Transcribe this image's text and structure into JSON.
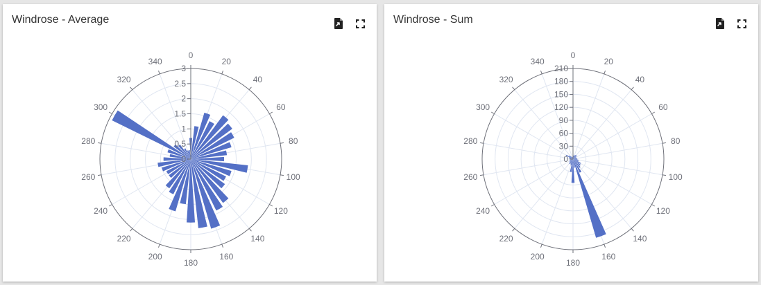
{
  "icons": {
    "export": "file-export-icon",
    "fullscreen": "fullscreen-icon"
  },
  "colors": {
    "bar": "#5470c6",
    "axis": "#6e7079",
    "grid": "#e0e6f1",
    "title": "#333333"
  },
  "chart_data": [
    {
      "type": "polar-bar",
      "title": "Windrose - Average",
      "angle_ticks": [
        0,
        20,
        40,
        60,
        80,
        100,
        120,
        140,
        160,
        180,
        200,
        220,
        240,
        260,
        280,
        300,
        320,
        340
      ],
      "radius_ticks": [
        "0",
        "0.5",
        "1",
        "1.5",
        "2",
        "2.5",
        "3"
      ],
      "radius_max": 3,
      "angle_labels_visible": true,
      "directions": [
        0,
        10,
        20,
        30,
        40,
        50,
        60,
        70,
        80,
        90,
        100,
        110,
        120,
        130,
        140,
        150,
        160,
        170,
        180,
        190,
        200,
        210,
        220,
        230,
        240,
        250,
        260,
        270,
        280,
        290,
        300,
        310,
        320,
        330,
        340,
        350
      ],
      "values": [
        0.7,
        1.1,
        1.6,
        1.4,
        1.8,
        1.7,
        1.6,
        1.4,
        1.2,
        1.1,
        1.9,
        1.4,
        1.3,
        1.4,
        1.8,
        1.9,
        2.4,
        2.3,
        2.1,
        1.5,
        1.8,
        1.3,
        1.2,
        0.9,
        0.9,
        1.0,
        1.1,
        0.9,
        0.7,
        0.8,
        2.9,
        0.7,
        0.6,
        0.4,
        0.3,
        0.3
      ]
    },
    {
      "type": "polar-bar",
      "title": "Windrose - Sum",
      "angle_ticks": [
        0,
        20,
        40,
        60,
        80,
        100,
        120,
        140,
        160,
        180,
        200,
        220,
        240,
        260,
        280,
        300,
        320,
        340
      ],
      "radius_ticks": [
        "0",
        "30",
        "60",
        "90",
        "120",
        "150",
        "180",
        "210"
      ],
      "radius_max": 210,
      "angle_labels_visible": true,
      "directions": [
        0,
        10,
        20,
        30,
        40,
        50,
        60,
        70,
        80,
        90,
        100,
        110,
        120,
        130,
        140,
        150,
        160,
        170,
        180,
        190,
        200,
        210,
        220,
        230,
        240,
        250,
        260,
        270,
        280,
        290,
        300,
        310,
        320,
        330,
        340,
        350
      ],
      "values": [
        6,
        8,
        9,
        11,
        12,
        10,
        8,
        8,
        10,
        9,
        12,
        14,
        20,
        22,
        25,
        35,
        190,
        20,
        55,
        30,
        15,
        12,
        14,
        10,
        9,
        8,
        6,
        7,
        8,
        10,
        18,
        12,
        9,
        6,
        5,
        5
      ]
    }
  ]
}
